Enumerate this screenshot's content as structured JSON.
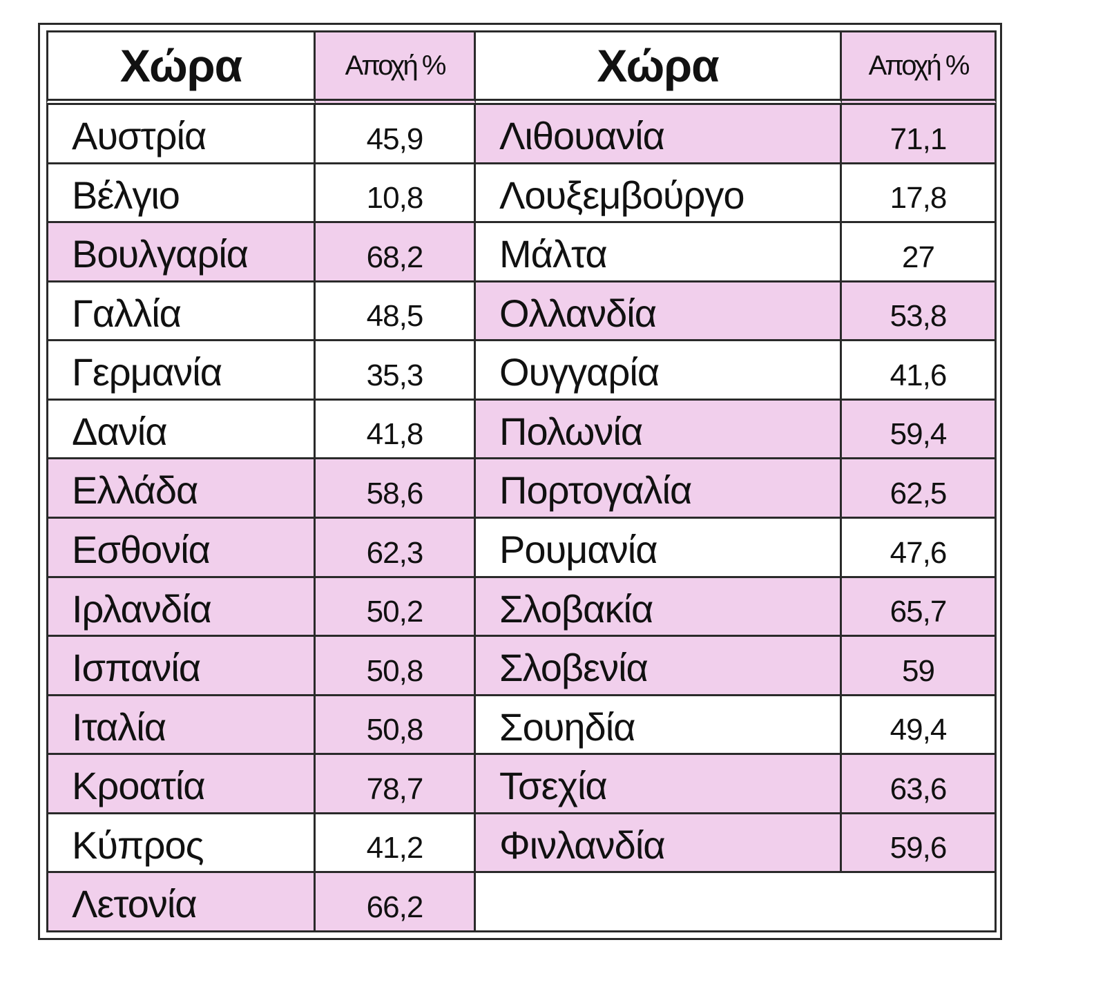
{
  "table": {
    "headers": [
      "Χώρα",
      "Αποχή %",
      "Χώρα",
      "Αποχή %"
    ],
    "left": [
      {
        "country": "Αυστρία",
        "value": "45,9",
        "highlight": false
      },
      {
        "country": "Βέλγιο",
        "value": "10,8",
        "highlight": false
      },
      {
        "country": "Βουλγαρία",
        "value": "68,2",
        "highlight": true
      },
      {
        "country": "Γαλλία",
        "value": "48,5",
        "highlight": false
      },
      {
        "country": "Γερμανία",
        "value": "35,3",
        "highlight": false
      },
      {
        "country": "Δανία",
        "value": "41,8",
        "highlight": false
      },
      {
        "country": "Ελλάδα",
        "value": "58,6",
        "highlight": true
      },
      {
        "country": "Εσθονία",
        "value": "62,3",
        "highlight": true
      },
      {
        "country": "Ιρλανδία",
        "value": "50,2",
        "highlight": true
      },
      {
        "country": "Ισπανία",
        "value": "50,8",
        "highlight": true
      },
      {
        "country": "Ιταλία",
        "value": "50,8",
        "highlight": true
      },
      {
        "country": "Κροατία",
        "value": "78,7",
        "highlight": true
      },
      {
        "country": "Κύπρος",
        "value": "41,2",
        "highlight": false
      },
      {
        "country": "Λετονία",
        "value": "66,2",
        "highlight": true
      }
    ],
    "right": [
      {
        "country": "Λιθουανία",
        "value": "71,1",
        "highlight": true
      },
      {
        "country": "Λουξεμβούργο",
        "value": "17,8",
        "highlight": false
      },
      {
        "country": "Μάλτα",
        "value": "27",
        "highlight": false
      },
      {
        "country": "Ολλανδία",
        "value": "53,8",
        "highlight": true
      },
      {
        "country": "Ουγγαρία",
        "value": "41,6",
        "highlight": false
      },
      {
        "country": "Πολωνία",
        "value": "59,4",
        "highlight": true
      },
      {
        "country": "Πορτογαλία",
        "value": "62,5",
        "highlight": true
      },
      {
        "country": "Ρουμανία",
        "value": "47,6",
        "highlight": false
      },
      {
        "country": "Σλοβακία",
        "value": "65,7",
        "highlight": true
      },
      {
        "country": "Σλοβενία",
        "value": "59",
        "highlight": true
      },
      {
        "country": "Σουηδία",
        "value": "49,4",
        "highlight": false
      },
      {
        "country": "Τσεχία",
        "value": "63,6",
        "highlight": true
      },
      {
        "country": "Φινλανδία",
        "value": "59,6",
        "highlight": true
      }
    ],
    "colors": {
      "highlight": "#f1cfec",
      "plain": "#ffffff",
      "border": "#2a2a2a"
    }
  }
}
